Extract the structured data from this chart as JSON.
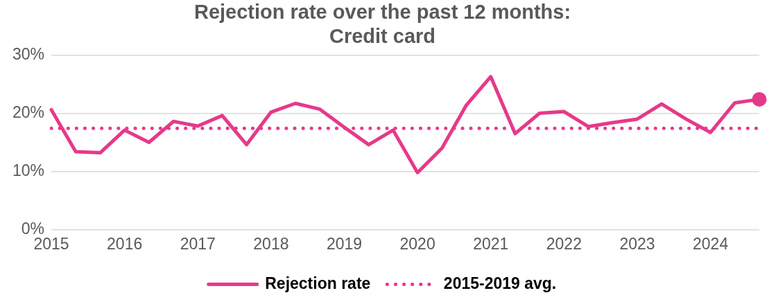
{
  "chart_data": {
    "type": "line",
    "title": "Rejection rate over the past 12 months:\nCredit card",
    "categories": [
      "2015",
      null,
      null,
      "2016",
      null,
      null,
      "2017",
      null,
      null,
      "2018",
      null,
      null,
      "2019",
      null,
      null,
      "2020",
      null,
      null,
      "2021",
      null,
      null,
      "2022",
      null,
      null,
      "2023",
      null,
      null,
      "2024",
      null,
      null
    ],
    "series": [
      {
        "name": "Rejection rate",
        "color": "#e6398a",
        "values": [
          20.6,
          13.4,
          13.2,
          17.1,
          15.0,
          18.6,
          17.8,
          19.6,
          14.6,
          20.2,
          21.7,
          20.7,
          17.6,
          14.6,
          17.1,
          9.8,
          14.0,
          21.4,
          26.3,
          16.5,
          20.0,
          20.3,
          17.7,
          18.4,
          19.0,
          21.6,
          19.0,
          16.7,
          21.8,
          22.4
        ]
      },
      {
        "name": "2015-2019 avg.",
        "color": "#e6398a",
        "line_style": "dotted",
        "values": [
          17.4,
          17.4,
          17.4,
          17.4,
          17.4,
          17.4,
          17.4,
          17.4,
          17.4,
          17.4,
          17.4,
          17.4,
          17.4,
          17.4,
          17.4,
          17.4,
          17.4,
          17.4,
          17.4,
          17.4,
          17.4,
          17.4,
          17.4,
          17.4,
          17.4,
          17.4,
          17.4,
          17.4,
          17.4,
          17.4
        ]
      }
    ],
    "ylim": [
      0,
      30
    ],
    "yticks": [
      {
        "value": 0,
        "label": "0%"
      },
      {
        "value": 10,
        "label": "10%"
      },
      {
        "value": 20,
        "label": "20%"
      },
      {
        "value": 30,
        "label": "30%"
      }
    ],
    "grid": "y",
    "legend": "bottom",
    "line_style": "solid"
  }
}
